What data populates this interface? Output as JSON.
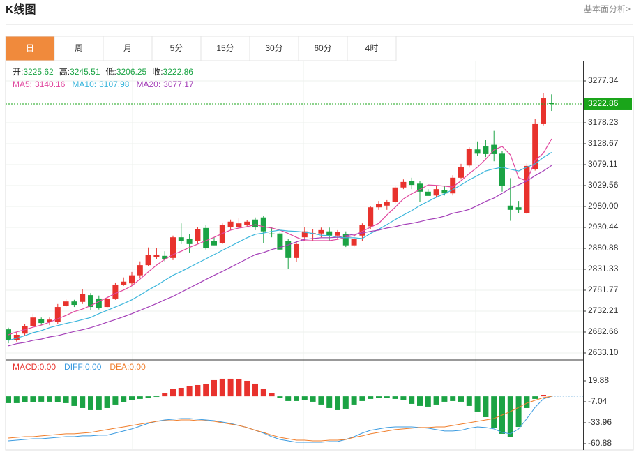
{
  "header": {
    "title": "K线图",
    "link": "基本面分析>"
  },
  "tabs": [
    "日",
    "周",
    "月",
    "5分",
    "15分",
    "30分",
    "60分",
    "4时"
  ],
  "active_tab": 0,
  "chart_data": [
    {
      "type": "candlestick",
      "ohlc_labels": {
        "open": "开:",
        "high": "高:",
        "low": "低:",
        "close": "收:"
      },
      "up_color": "#e8322d",
      "down_color": "#1ba344",
      "price_line_color": "#1aa51a",
      "open": [
        2689,
        2663,
        2679,
        2696,
        2714,
        2706,
        2706,
        2745,
        2755,
        2754,
        2770,
        2762,
        2742,
        2762,
        2795,
        2798,
        2817,
        2841,
        2861,
        2863,
        2858,
        2907,
        2904,
        2899,
        2929,
        2899,
        2894,
        2932,
        2932,
        2937,
        2949,
        2954,
        2916,
        2916,
        2899,
        2858,
        2907,
        2914,
        2916,
        2921,
        2911,
        2914,
        2888,
        2911,
        2933,
        2978,
        2982,
        2990,
        3025,
        3041,
        3034,
        3015,
        3006,
        3018,
        3011,
        3048,
        3077,
        3115,
        3122,
        3126,
        3105,
        2982,
        2978,
        2965,
        3068,
        3175,
        3225.62
      ],
      "high": [
        2693,
        2683,
        2701,
        2726,
        2717,
        2717,
        2749,
        2762,
        2759,
        2785,
        2775,
        2769,
        2767,
        2800,
        2812,
        2825,
        2850,
        2883,
        2881,
        2874,
        2911,
        2940,
        2914,
        2931,
        2937,
        2907,
        2940,
        2949,
        2952,
        2947,
        2954,
        2957,
        2932,
        2921,
        2904,
        2899,
        2932,
        2927,
        2930,
        2930,
        2924,
        2921,
        2914,
        2940,
        2980,
        2993,
        2995,
        3028,
        3044,
        3048,
        3041,
        3021,
        3028,
        3028,
        3054,
        3081,
        3120,
        3134,
        3137,
        3159,
        3112,
        3047,
        2993,
        3082,
        3188,
        3248,
        3245.51
      ],
      "low": [
        2656,
        2660,
        2673,
        2693,
        2699,
        2699,
        2701,
        2742,
        2742,
        2749,
        2734,
        2736,
        2739,
        2759,
        2792,
        2792,
        2811,
        2838,
        2855,
        2850,
        2853,
        2891,
        2871,
        2891,
        2878,
        2888,
        2891,
        2924,
        2929,
        2931,
        2924,
        2894,
        2907,
        2878,
        2833,
        2849,
        2899,
        2899,
        2907,
        2899,
        2904,
        2884,
        2884,
        2899,
        2926,
        2972,
        2972,
        2985,
        3021,
        3021,
        2990,
        3008,
        3001,
        3006,
        3006,
        3044,
        3072,
        3100,
        3097,
        3087,
        3015,
        2946,
        2965,
        2962,
        3065,
        3172,
        3206.25
      ],
      "close": [
        2663,
        2676,
        2696,
        2717,
        2704,
        2712,
        2742,
        2755,
        2747,
        2772,
        2742,
        2739,
        2762,
        2795,
        2802,
        2817,
        2841,
        2866,
        2866,
        2855,
        2907,
        2899,
        2891,
        2927,
        2882,
        2888,
        2937,
        2944,
        2940,
        2944,
        2931,
        2921,
        2915,
        2878,
        2858,
        2891,
        2921,
        2917,
        2924,
        2911,
        2919,
        2888,
        2904,
        2937,
        2978,
        2985,
        2991,
        3025,
        3038,
        3031,
        3015,
        3005,
        3021,
        3011,
        3048,
        3074,
        3117,
        3105,
        3104,
        3104,
        3028,
        2972,
        2972,
        3076,
        3175,
        3236,
        3222.86
      ],
      "series": [
        {
          "name": "MA5:",
          "color": "#e0479e",
          "values": [
            2676,
            2683,
            2688,
            2694,
            2699,
            2706,
            2714,
            2722,
            2731,
            2737,
            2745,
            2755,
            2764,
            2774,
            2782,
            2792,
            2808,
            2825,
            2841,
            2855,
            2866,
            2874,
            2883,
            2891,
            2899,
            2907,
            2916,
            2924,
            2929,
            2932,
            2937,
            2932,
            2929,
            2924,
            2916,
            2907,
            2899,
            2899,
            2899,
            2899,
            2902,
            2907,
            2911,
            2921,
            2931,
            2940,
            2960,
            2978,
            2998,
            3010,
            3020,
            3031,
            3030,
            3028,
            3026,
            3041,
            3058,
            3073,
            3092,
            3114,
            3122,
            3102,
            3048,
            3040,
            3089,
            3106,
            3140.16
          ]
        },
        {
          "name": "MA10:",
          "color": "#3cb6dc",
          "values": [
            2663,
            2668,
            2674,
            2681,
            2686,
            2693,
            2698,
            2703,
            2707,
            2712,
            2717,
            2726,
            2734,
            2742,
            2750,
            2759,
            2770,
            2782,
            2793,
            2805,
            2817,
            2826,
            2836,
            2846,
            2856,
            2866,
            2876,
            2886,
            2896,
            2906,
            2914,
            2917,
            2921,
            2924,
            2922,
            2921,
            2919,
            2916,
            2912,
            2911,
            2907,
            2906,
            2906,
            2904,
            2916,
            2926,
            2937,
            2949,
            2960,
            2970,
            2982,
            2992,
            3002,
            3010,
            3020,
            3031,
            3043,
            3053,
            3064,
            3069,
            3073,
            3068,
            3064,
            3073,
            3081,
            3096,
            3107.98
          ]
        },
        {
          "name": "MA20:",
          "color": "#a43fb8",
          "values": [
            2650,
            2655,
            2658,
            2663,
            2666,
            2671,
            2674,
            2679,
            2684,
            2688,
            2693,
            2699,
            2706,
            2712,
            2719,
            2726,
            2734,
            2742,
            2750,
            2759,
            2767,
            2777,
            2787,
            2797,
            2807,
            2817,
            2826,
            2836,
            2846,
            2856,
            2866,
            2871,
            2878,
            2883,
            2889,
            2896,
            2902,
            2904,
            2906,
            2906,
            2907,
            2911,
            2914,
            2917,
            2921,
            2924,
            2929,
            2932,
            2937,
            2940,
            2944,
            2949,
            2952,
            2957,
            2964,
            2968,
            2973,
            2982,
            2992,
            3000,
            3011,
            3023,
            3031,
            3040,
            3053,
            3064,
            3077.17
          ]
        }
      ],
      "ylim": [
        2618.2,
        3323.6
      ],
      "yticks": [
        3277.34,
        3178.23,
        3128.67,
        3079.11,
        3029.56,
        {
          "value": 2980,
          "label": "2980.00"
        },
        2930.44,
        2880.88,
        2831.33,
        2781.77,
        2732.21,
        2682.66,
        {
          "value": 2633.1,
          "label": "2633.10"
        }
      ],
      "grid": true
    },
    {
      "type": "macd",
      "up_color": "#e8322d",
      "down_color": "#1ba344",
      "series": [
        {
          "name": "MACD:",
          "color": "#e8322d",
          "style": "bar",
          "last_value": {
            "value": 0,
            "label": "0.00"
          },
          "values": [
            -8.8,
            -8.8,
            -7.9,
            -7.9,
            -7.0,
            -7.0,
            -7.9,
            -8.8,
            -12.4,
            -15.1,
            -17.8,
            -17.8,
            -15.1,
            -10.6,
            -7.9,
            -5.2,
            -3.4,
            -1.7,
            -0.8,
            3.7,
            9.1,
            10.9,
            12.7,
            14.5,
            15.4,
            20.8,
            22.6,
            22.6,
            21.7,
            19.9,
            16.3,
            10.0,
            3.7,
            -2.5,
            -6.1,
            -6.1,
            -5.2,
            -7.0,
            -10.6,
            -15.1,
            -17.8,
            -16.0,
            -10.6,
            -6.1,
            -3.4,
            -2.5,
            -1.7,
            -3.4,
            -5.2,
            -9.7,
            -12.4,
            -13.3,
            -10.6,
            -7.0,
            -6.1,
            -7.0,
            -12.4,
            -19.6,
            -26.8,
            -41.1,
            -48.3,
            -52.8,
            -39.4,
            -15.1,
            -3.4,
            1.9,
            0
          ]
        },
        {
          "name": "DIFF:",
          "color": "#3b9be0",
          "style": "line",
          "last_value": {
            "value": 0,
            "label": "0.00"
          },
          "values": [
            -57.3,
            -56.4,
            -55.5,
            -54.6,
            -54.6,
            -53.7,
            -52.8,
            -51.9,
            -51.9,
            -51.0,
            -51.0,
            -50.1,
            -50.1,
            -47.4,
            -44.7,
            -42.0,
            -38.5,
            -34.9,
            -32.2,
            -30.4,
            -29.5,
            -28.6,
            -28.6,
            -29.5,
            -30.4,
            -31.3,
            -33.1,
            -34.9,
            -37.6,
            -40.2,
            -43.8,
            -47.4,
            -51.9,
            -55.5,
            -57.3,
            -59.1,
            -59.1,
            -59.1,
            -59.1,
            -58.2,
            -58.2,
            -55.5,
            -51.9,
            -47.4,
            -43.8,
            -42.0,
            -40.2,
            -39.4,
            -39.4,
            -39.4,
            -40.2,
            -41.1,
            -42.9,
            -44.7,
            -44.7,
            -43.8,
            -41.1,
            -39.4,
            -40.2,
            -42.0,
            -46.5,
            -48.3,
            -42.0,
            -28.6,
            -14.2,
            -3.4,
            0
          ]
        },
        {
          "name": "DEA:",
          "color": "#f07d2a",
          "style": "line",
          "last_value": {
            "value": 0,
            "label": "0.00"
          },
          "values": [
            -53.7,
            -52.8,
            -51.9,
            -51.9,
            -51.0,
            -50.1,
            -49.2,
            -48.3,
            -48.3,
            -47.4,
            -46.5,
            -44.7,
            -42.9,
            -41.1,
            -39.4,
            -37.6,
            -35.8,
            -34.0,
            -32.2,
            -31.3,
            -31.3,
            -30.4,
            -30.4,
            -31.3,
            -31.3,
            -32.2,
            -34.0,
            -35.8,
            -37.6,
            -40.2,
            -43.8,
            -46.5,
            -50.1,
            -52.8,
            -54.6,
            -56.4,
            -56.4,
            -57.3,
            -57.3,
            -56.4,
            -56.4,
            -55.5,
            -52.8,
            -51.0,
            -48.3,
            -46.5,
            -44.7,
            -42.9,
            -42.0,
            -41.1,
            -40.2,
            -40.2,
            -39.4,
            -39.4,
            -37.6,
            -35.8,
            -34.0,
            -32.2,
            -30.4,
            -28.6,
            -24.1,
            -19.6,
            -14.2,
            -8.8,
            -5.2,
            -1.7,
            0
          ]
        }
      ],
      "ylim": [
        -69,
        45.9
      ],
      "yticks": [
        19.88,
        -7.04,
        -33.96,
        -60.88
      ]
    }
  ]
}
